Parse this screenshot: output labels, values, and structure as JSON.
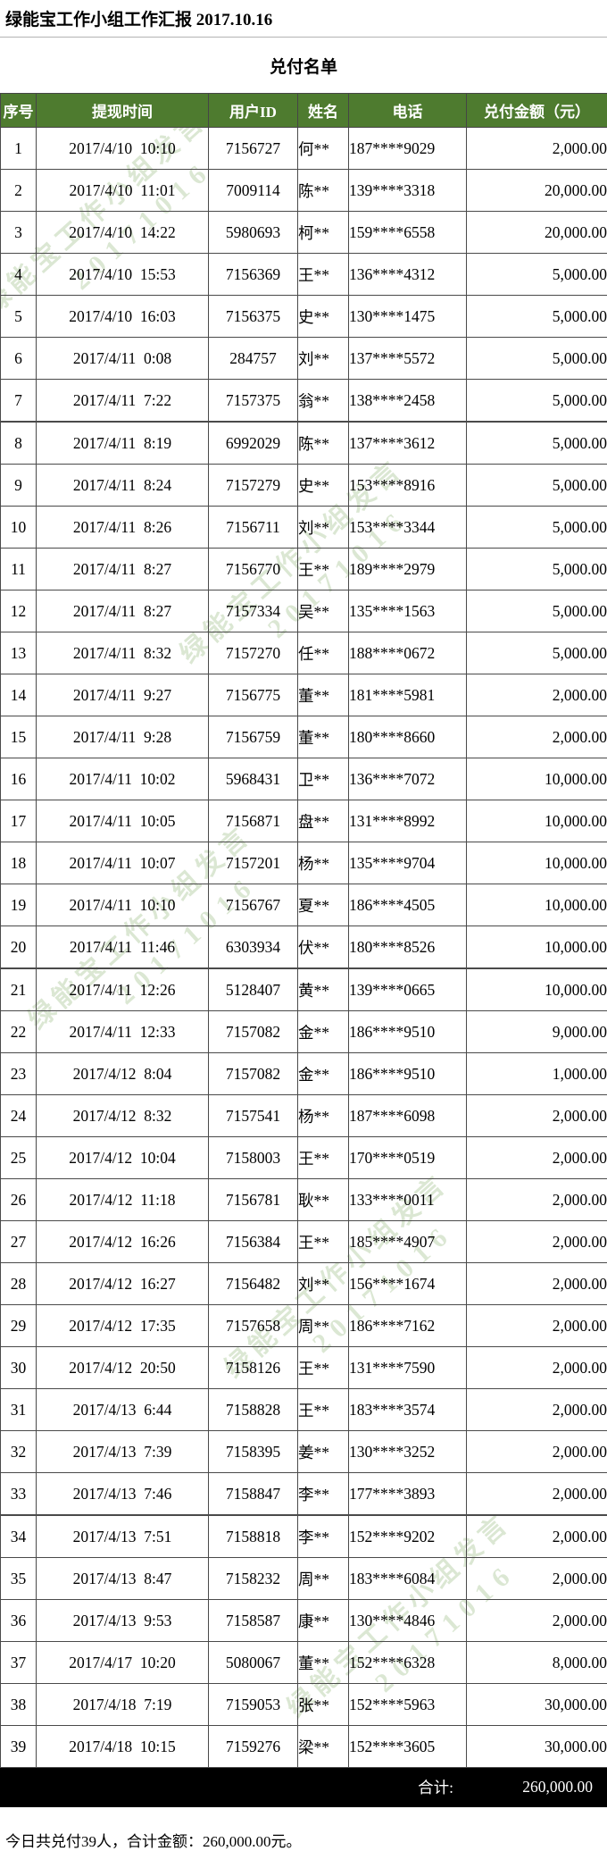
{
  "page": {
    "title": "绿能宝工作小组工作汇报  2017.10.16",
    "subtitle": "兑付名单",
    "footer": "今日共兑付39人，合计金额：260,000.00元。"
  },
  "colors": {
    "header_bg": "#4e7b2f",
    "total_row_bg": "#000000",
    "grid_border": "#4a4a4a",
    "watermark_green": "rgba(137,177,108,0.30)"
  },
  "watermark": {
    "line1": "绿能宝工作小组发言",
    "line2": "20171016"
  },
  "table": {
    "columns": [
      "序号",
      "提现时间",
      "用户ID",
      "姓名",
      "电话",
      "兑付金额（元）"
    ],
    "rows": [
      [
        "1",
        "2017/4/10  10:10",
        "7156727",
        "何**",
        "187****9029",
        "2,000.00"
      ],
      [
        "2",
        "2017/4/10  11:01",
        "7009114",
        "陈**",
        "139****3318",
        "20,000.00"
      ],
      [
        "3",
        "2017/4/10  14:22",
        "5980693",
        "柯**",
        "159****6558",
        "20,000.00"
      ],
      [
        "4",
        "2017/4/10  15:53",
        "7156369",
        "王**",
        "136****4312",
        "5,000.00"
      ],
      [
        "5",
        "2017/4/10  16:03",
        "7156375",
        "史**",
        "130****1475",
        "5,000.00"
      ],
      [
        "6",
        "2017/4/11  0:08",
        "284757",
        "刘**",
        "137****5572",
        "5,000.00"
      ],
      [
        "7",
        "2017/4/11  7:22",
        "7157375",
        "翁**",
        "138****2458",
        "5,000.00"
      ],
      [
        "8",
        "2017/4/11  8:19",
        "6992029",
        "陈**",
        "137****3612",
        "5,000.00"
      ],
      [
        "9",
        "2017/4/11  8:24",
        "7157279",
        "史**",
        "153****8916",
        "5,000.00"
      ],
      [
        "10",
        "2017/4/11  8:26",
        "7156711",
        "刘**",
        "153****3344",
        "5,000.00"
      ],
      [
        "11",
        "2017/4/11  8:27",
        "7156770",
        "王**",
        "189****2979",
        "5,000.00"
      ],
      [
        "12",
        "2017/4/11  8:27",
        "7157334",
        "吴**",
        "135****1563",
        "5,000.00"
      ],
      [
        "13",
        "2017/4/11  8:32",
        "7157270",
        "任**",
        "188****0672",
        "5,000.00"
      ],
      [
        "14",
        "2017/4/11  9:27",
        "7156775",
        "董**",
        "181****5981",
        "2,000.00"
      ],
      [
        "15",
        "2017/4/11  9:28",
        "7156759",
        "董**",
        "180****8660",
        "2,000.00"
      ],
      [
        "16",
        "2017/4/11  10:02",
        "5968431",
        "卫**",
        "136****7072",
        "10,000.00"
      ],
      [
        "17",
        "2017/4/11  10:05",
        "7156871",
        "盘**",
        "131****8992",
        "10,000.00"
      ],
      [
        "18",
        "2017/4/11  10:07",
        "7157201",
        "杨**",
        "135****9704",
        "10,000.00"
      ],
      [
        "19",
        "2017/4/11  10:10",
        "7156767",
        "夏**",
        "186****4505",
        "10,000.00"
      ],
      [
        "20",
        "2017/4/11  11:46",
        "6303934",
        "伏**",
        "180****8526",
        "10,000.00"
      ],
      [
        "21",
        "2017/4/11  12:26",
        "5128407",
        "黄**",
        "139****0665",
        "10,000.00"
      ],
      [
        "22",
        "2017/4/11  12:33",
        "7157082",
        "金**",
        "186****9510",
        "9,000.00"
      ],
      [
        "23",
        "2017/4/12  8:04",
        "7157082",
        "金**",
        "186****9510",
        "1,000.00"
      ],
      [
        "24",
        "2017/4/12  8:32",
        "7157541",
        "杨**",
        "187****6098",
        "2,000.00"
      ],
      [
        "25",
        "2017/4/12  10:04",
        "7158003",
        "王**",
        "170****0519",
        "2,000.00"
      ],
      [
        "26",
        "2017/4/12  11:18",
        "7156781",
        "耿**",
        "133****0011",
        "2,000.00"
      ],
      [
        "27",
        "2017/4/12  16:26",
        "7156384",
        "王**",
        "185****4907",
        "2,000.00"
      ],
      [
        "28",
        "2017/4/12  16:27",
        "7156482",
        "刘**",
        "156****1674",
        "2,000.00"
      ],
      [
        "29",
        "2017/4/12  17:35",
        "7157658",
        "周**",
        "186****7162",
        "2,000.00"
      ],
      [
        "30",
        "2017/4/12  20:50",
        "7158126",
        "王**",
        "131****7590",
        "2,000.00"
      ],
      [
        "31",
        "2017/4/13  6:44",
        "7158828",
        "王**",
        "183****3574",
        "2,000.00"
      ],
      [
        "32",
        "2017/4/13  7:39",
        "7158395",
        "姜**",
        "130****3252",
        "2,000.00"
      ],
      [
        "33",
        "2017/4/13  7:46",
        "7158847",
        "李**",
        "177****3893",
        "2,000.00"
      ],
      [
        "34",
        "2017/4/13  7:51",
        "7158818",
        "李**",
        "152****9202",
        "2,000.00"
      ],
      [
        "35",
        "2017/4/13  8:47",
        "7158232",
        "周**",
        "183****6084",
        "2,000.00"
      ],
      [
        "36",
        "2017/4/13  9:53",
        "7158587",
        "康**",
        "130****4846",
        "2,000.00"
      ],
      [
        "37",
        "2017/4/17  10:20",
        "5080067",
        "董**",
        "152****6328",
        "8,000.00"
      ],
      [
        "38",
        "2017/4/18  7:19",
        "7159053",
        "张**",
        "152****5963",
        "30,000.00"
      ],
      [
        "39",
        "2017/4/18  10:15",
        "7159276",
        "梁**",
        "152****3605",
        "30,000.00"
      ]
    ],
    "total_label": "合计:",
    "total_amount": "260,000.00"
  }
}
